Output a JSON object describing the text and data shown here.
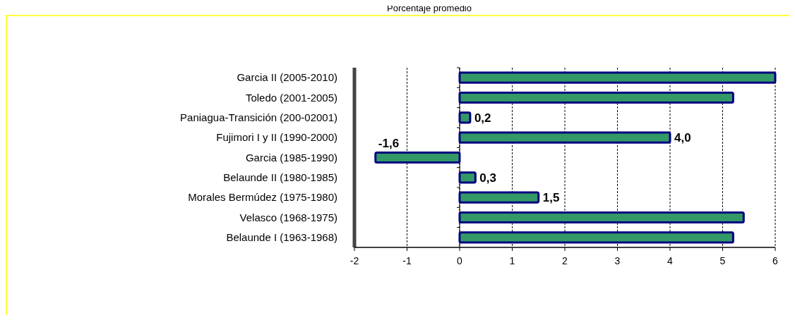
{
  "chart_data": {
    "type": "bar",
    "orientation": "horizontal",
    "title": "Porcentaje promedio",
    "categories": [
      "Garcia II (2005-2010)",
      "Toledo (2001-2005)",
      "Paniagua-Transición (200-02001)",
      "Fujimori I y II (1990-2000)",
      "Garcia (1985-1990)",
      "Belaunde II (1980-1985)",
      "Morales Bermúdez (1975-1980)",
      "Velasco (1968-1975)",
      "Belaunde  I (1963-1968)"
    ],
    "values": [
      6.0,
      5.2,
      0.2,
      4.0,
      -1.6,
      0.3,
      1.5,
      5.4,
      5.2
    ],
    "value_labels": [
      null,
      null,
      "0,2",
      "4,0",
      "-1,6",
      "0,3",
      "1,5",
      null,
      null
    ],
    "color": "#339966",
    "xlim": [
      -2,
      6
    ],
    "xticks": [
      -2,
      -1,
      0,
      1,
      2,
      3,
      4,
      5,
      6
    ],
    "grid": "x"
  }
}
